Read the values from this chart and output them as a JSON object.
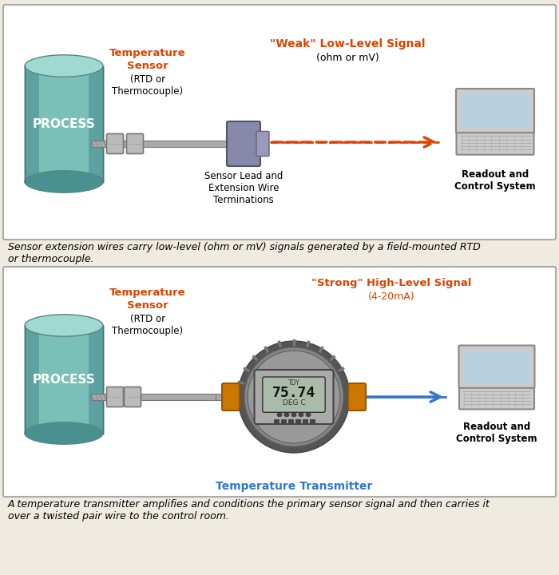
{
  "bg_color": "#f0ebe0",
  "box_bg": "#ffffff",
  "orange_color": "#dd4400",
  "blue_signal_color": "#3377cc",
  "orange_signal_color": "#dd4400",
  "process_label": "PROCESS",
  "sensor_label_red1": "Temperature",
  "sensor_label_red2": "Sensor",
  "sensor_label_black": "(RTD or\nThermocouple)",
  "weak_signal_orange": "\"Weak\" Low-Level Signal",
  "weak_signal_black": "(ohm or mV)",
  "termination_label": "Sensor Lead and\nExtension Wire\nTerminations",
  "readout_label": "Readout and\nControl System",
  "strong_signal_orange": "\"Strong\" High-Level Signal",
  "strong_signal_black": "(4-20mA)",
  "transmitter_label": "Temperature Transmitter",
  "caption1": "Sensor extension wires carry low-level (ohm or mV) signals generated by a field-mounted RTD\nor thermocouple.",
  "caption2": "A temperature transmitter amplifies and conditions the primary sensor signal and then carries it\nover a twisted pair wire to the control room.",
  "teal_body": "#7abfb8",
  "teal_top": "#a0d8d2",
  "teal_dark": "#4a9090",
  "pipe_color": "#aaaaaa",
  "pipe_edge": "#777777",
  "nut_color": "#bbbbbb",
  "term_color": "#8888aa",
  "laptop_base": "#bbbbbb",
  "laptop_screen_frame": "#cccccc",
  "laptop_screen": "#b8cfe0",
  "trans_outer": "#666666",
  "trans_body": "#888888",
  "trans_flange": "#cc7700",
  "trans_display_bg": "#aabbaa"
}
